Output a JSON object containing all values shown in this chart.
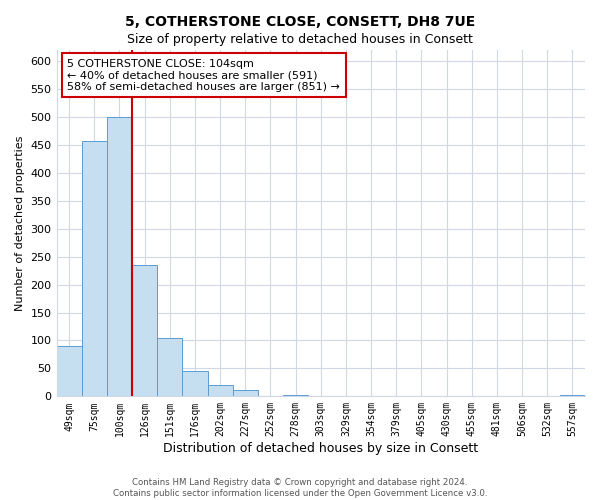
{
  "title": "5, COTHERSTONE CLOSE, CONSETT, DH8 7UE",
  "subtitle": "Size of property relative to detached houses in Consett",
  "xlabel": "Distribution of detached houses by size in Consett",
  "ylabel": "Number of detached properties",
  "bar_labels": [
    "49sqm",
    "75sqm",
    "100sqm",
    "126sqm",
    "151sqm",
    "176sqm",
    "202sqm",
    "227sqm",
    "252sqm",
    "278sqm",
    "303sqm",
    "329sqm",
    "354sqm",
    "379sqm",
    "405sqm",
    "430sqm",
    "455sqm",
    "481sqm",
    "506sqm",
    "532sqm",
    "557sqm"
  ],
  "bar_values": [
    90,
    457,
    500,
    236,
    104,
    45,
    20,
    11,
    0,
    2,
    0,
    0,
    0,
    0,
    0,
    0,
    0,
    0,
    0,
    0,
    2
  ],
  "bar_color": "#c5dff0",
  "bar_edge_color": "#5b9bd5",
  "ylim": [
    0,
    620
  ],
  "yticks": [
    0,
    50,
    100,
    150,
    200,
    250,
    300,
    350,
    400,
    450,
    500,
    550,
    600
  ],
  "property_line_color": "#cc0000",
  "annotation_text": "5 COTHERSTONE CLOSE: 104sqm\n← 40% of detached houses are smaller (591)\n58% of semi-detached houses are larger (851) →",
  "footer_line1": "Contains HM Land Registry data © Crown copyright and database right 2024.",
  "footer_line2": "Contains public sector information licensed under the Open Government Licence v3.0.",
  "background_color": "#ffffff",
  "grid_color": "#d0d8e8"
}
